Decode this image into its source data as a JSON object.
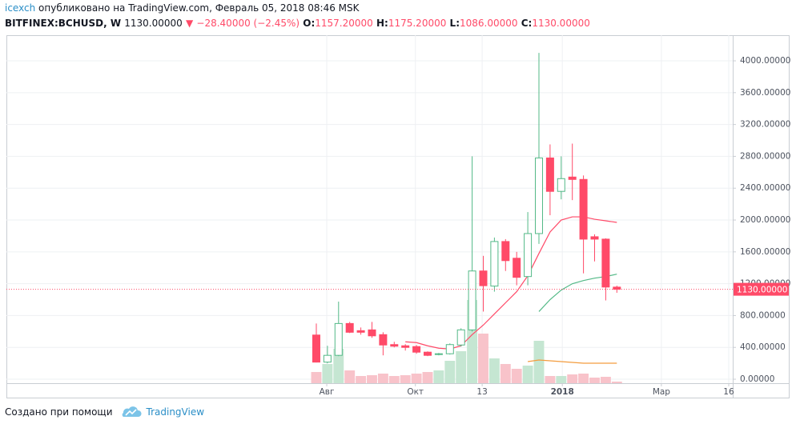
{
  "header": {
    "author": "icexch",
    "published": "опубликовано на TradingView.com, Февраль 05, 2018 08:46 MSK",
    "symbol": "BITFINEX:BCHUSD, W",
    "last": "1130.00000",
    "arrow": "▼",
    "change": "−28.40000 (−2.45%)",
    "ohlc": [
      {
        "key": "O:",
        "value": "1157.20000"
      },
      {
        "key": "H:",
        "value": "1175.20000"
      },
      {
        "key": "L:",
        "value": "1086.00000"
      },
      {
        "key": "C:",
        "value": "1130.00000"
      }
    ]
  },
  "footer": {
    "created": "Создано при помощи",
    "brand": "TradingView"
  },
  "chart_data": {
    "type": "candlestick",
    "open": [
      555,
      215,
      300,
      700,
      610,
      620,
      560,
      435,
      420,
      410,
      340,
      310,
      320,
      430,
      620,
      1360,
      1170,
      1730,
      1520,
      1290,
      1830,
      2780,
      2360,
      2540,
      2510,
      1790,
      1760,
      1157.2
    ],
    "high": [
      700,
      420,
      975,
      720,
      650,
      720,
      590,
      470,
      440,
      430,
      350,
      330,
      450,
      640,
      2800,
      1550,
      1780,
      1760,
      1600,
      2100,
      4100,
      2950,
      2800,
      2960,
      2560,
      1820,
      1770,
      1175.2
    ],
    "low": [
      210,
      200,
      290,
      580,
      560,
      520,
      300,
      400,
      360,
      320,
      290,
      300,
      310,
      410,
      600,
      850,
      1100,
      1360,
      1180,
      1180,
      1700,
      2060,
      2260,
      2250,
      1330,
      1480,
      990,
      1086
    ],
    "close": [
      215,
      300,
      700,
      590,
      590,
      545,
      430,
      415,
      400,
      340,
      300,
      320,
      435,
      620,
      1360,
      1175,
      1730,
      1490,
      1280,
      1830,
      2780,
      2360,
      2520,
      2510,
      1760,
      1760,
      1158,
      1130
    ],
    "up_color": "#53b987",
    "down_color": "#ff4a68",
    "ma_series": [
      {
        "color": "#ff4a68",
        "values": [
          null,
          null,
          null,
          null,
          null,
          null,
          null,
          null,
          470,
          460,
          420,
          390,
          380,
          420,
          560,
          680,
          820,
          960,
          1100,
          1300,
          1580,
          1850,
          2000,
          2040,
          2040,
          2010,
          1990,
          1970
        ]
      },
      {
        "color": "#53b987",
        "values": [
          null,
          null,
          null,
          null,
          null,
          null,
          null,
          null,
          null,
          null,
          null,
          null,
          null,
          null,
          null,
          null,
          null,
          null,
          null,
          null,
          850,
          1000,
          1120,
          1200,
          1240,
          1270,
          1290,
          1320
        ]
      }
    ],
    "volume": {
      "values": [
        14,
        24,
        43,
        16,
        9,
        10,
        12,
        9,
        10,
        12,
        14,
        16,
        28,
        40,
        104,
        62,
        31,
        24,
        18,
        22,
        53,
        9,
        9,
        11,
        12,
        7,
        8,
        2
      ],
      "ylim": [
        0,
        435
      ],
      "up_color": "#c5e6d2",
      "down_color": "#f8c3ca",
      "ma": {
        "color": "#f39c3e",
        "values": [
          null,
          null,
          null,
          null,
          null,
          null,
          null,
          null,
          null,
          null,
          null,
          null,
          null,
          null,
          null,
          null,
          null,
          null,
          null,
          27,
          29,
          28,
          27,
          26,
          25,
          25,
          25,
          25
        ]
      }
    },
    "last_price": {
      "value": 1130,
      "label": "1130.00000",
      "color": "#ff4a68"
    },
    "xlim": [
      -27.84,
      37.41
    ],
    "xticks": [
      {
        "value": 0.94,
        "label": "Авг"
      },
      {
        "value": 8.9,
        "label": "Окт"
      },
      {
        "value": 14.9,
        "label": "13"
      },
      {
        "value": 22.1,
        "label": "2018"
      },
      {
        "value": 31.0,
        "label": "Мар"
      },
      {
        "value": 37.05,
        "label": "16"
      }
    ],
    "ylim": [
      -50,
      4322
    ],
    "yticks": [
      {
        "value": 0,
        "label": "0.00000"
      },
      {
        "value": 400,
        "label": "400.00000"
      },
      {
        "value": 800,
        "label": "800.00000"
      },
      {
        "value": 1200,
        "label": "1200.00000"
      },
      {
        "value": 1600,
        "label": "1600.00000"
      },
      {
        "value": 2000,
        "label": "2000.00000"
      },
      {
        "value": 2400,
        "label": "2400.00000"
      },
      {
        "value": 2800,
        "label": "2800.00000"
      },
      {
        "value": 3200,
        "label": "3200.00000"
      },
      {
        "value": 3600,
        "label": "3600.00000"
      },
      {
        "value": 4000,
        "label": "4000.00000"
      }
    ],
    "grid": true
  }
}
